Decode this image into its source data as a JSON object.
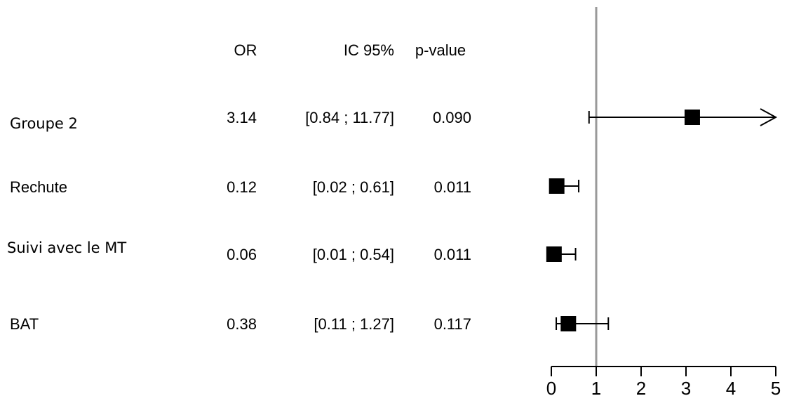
{
  "chart_data": {
    "type": "forest",
    "columns": {
      "or": "OR",
      "ci": "IC 95%",
      "p": "p-value"
    },
    "rows": [
      {
        "label": "Groupe 2",
        "or_text": "3.14",
        "ci_text": "[0.84 ; 11.77]",
        "p_text": "0.090",
        "or": 3.14,
        "lower": 0.84,
        "upper": 11.77
      },
      {
        "label": "Rechute",
        "or_text": "0.12",
        "ci_text": "[0.02 ; 0.61]",
        "p_text": "0.011",
        "or": 0.12,
        "lower": 0.02,
        "upper": 0.61
      },
      {
        "label": "Suivi avec le MT",
        "or_text": "0.06",
        "ci_text": "[0.01 ; 0.54]",
        "p_text": "0.011",
        "or": 0.06,
        "lower": 0.01,
        "upper": 0.54
      },
      {
        "label": "BAT",
        "or_text": "0.38",
        "ci_text": "[0.11 ; 1.27]",
        "p_text": "0.117",
        "or": 0.38,
        "lower": 0.11,
        "upper": 1.27
      }
    ],
    "xlim": [
      0,
      5
    ],
    "xticks": [
      "0",
      "1",
      "2",
      "3",
      "4",
      "5"
    ],
    "reference_line": 1,
    "colors": {
      "marker": "#000000",
      "reference": "#999999",
      "text": "#000000"
    }
  }
}
